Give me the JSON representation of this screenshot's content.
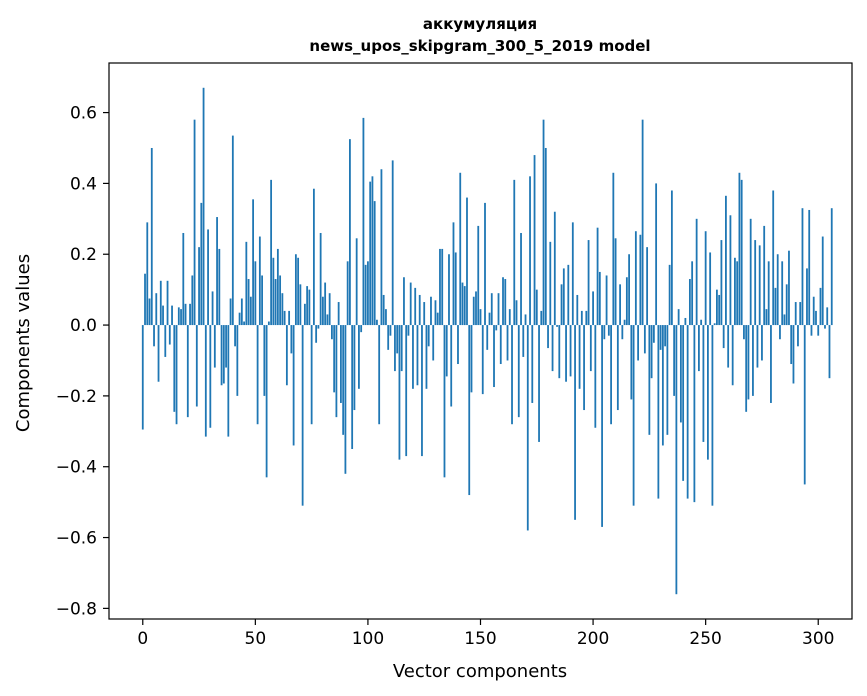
{
  "chart_data": {
    "type": "bar",
    "title_line1": "аккумуляция",
    "title_line2": "news_upos_skipgram_300_5_2019 model",
    "xlabel": "Vector components",
    "ylabel": "Components values",
    "xlim": [
      -15,
      315
    ],
    "ylim": [
      -0.83,
      0.74
    ],
    "xticks": [
      0,
      50,
      100,
      150,
      200,
      250,
      300
    ],
    "yticks": [
      -0.8,
      -0.6,
      -0.4,
      -0.2,
      0.0,
      0.2,
      0.4,
      0.6
    ],
    "ytick_labels": [
      "−0.8",
      "−0.6",
      "−0.4",
      "−0.2",
      "0.0",
      "0.2",
      "0.4",
      "0.6"
    ],
    "bar_color": "#1f77b4",
    "values": [
      -0.295,
      0.145,
      0.29,
      0.075,
      0.5,
      -0.06,
      0.09,
      -0.16,
      0.125,
      0.055,
      -0.09,
      0.125,
      -0.055,
      0.055,
      -0.245,
      -0.28,
      0.05,
      0.045,
      0.26,
      0.06,
      -0.26,
      0.06,
      0.14,
      0.58,
      -0.23,
      0.22,
      0.345,
      0.67,
      -0.315,
      0.27,
      -0.29,
      0.095,
      -0.12,
      0.305,
      0.215,
      -0.17,
      -0.165,
      -0.12,
      -0.315,
      0.075,
      0.535,
      -0.06,
      -0.2,
      0.035,
      0.075,
      0.01,
      0.235,
      0.13,
      0.08,
      0.355,
      0.18,
      -0.28,
      0.25,
      0.14,
      -0.2,
      -0.43,
      0.01,
      0.41,
      0.19,
      0.13,
      0.215,
      0.14,
      0.09,
      0.04,
      -0.17,
      0.04,
      -0.08,
      -0.34,
      0.2,
      0.19,
      0.115,
      -0.51,
      0.06,
      0.11,
      0.1,
      -0.28,
      0.385,
      -0.05,
      -0.01,
      0.26,
      0.08,
      0.12,
      0.03,
      0.09,
      -0.04,
      -0.19,
      -0.26,
      0.065,
      -0.22,
      -0.31,
      -0.42,
      0.18,
      0.525,
      -0.35,
      -0.24,
      0.245,
      -0.18,
      -0.02,
      0.585,
      0.17,
      0.18,
      0.405,
      0.42,
      0.35,
      0.015,
      -0.28,
      0.44,
      0.085,
      0.045,
      -0.07,
      -0.03,
      0.465,
      -0.13,
      -0.08,
      -0.38,
      -0.13,
      0.135,
      -0.37,
      -0.03,
      0.12,
      -0.18,
      0.105,
      -0.17,
      0.085,
      -0.37,
      0.065,
      -0.18,
      -0.06,
      0.08,
      -0.1,
      0.07,
      0.035,
      0.215,
      0.215,
      -0.43,
      -0.145,
      0.2,
      -0.23,
      0.29,
      0.205,
      -0.11,
      0.43,
      0.12,
      0.11,
      0.36,
      -0.48,
      -0.19,
      0.08,
      0.095,
      0.28,
      0.045,
      -0.195,
      0.345,
      -0.07,
      0.035,
      0.09,
      -0.175,
      -0.015,
      0.09,
      -0.11,
      0.135,
      0.13,
      -0.1,
      0.045,
      -0.28,
      0.41,
      0.07,
      -0.26,
      0.26,
      -0.09,
      0.03,
      -0.58,
      0.42,
      -0.22,
      0.48,
      0.1,
      -0.33,
      0.04,
      0.58,
      0.5,
      -0.065,
      0.235,
      -0.13,
      0.32,
      -0.005,
      -0.15,
      0.115,
      0.16,
      -0.16,
      0.17,
      -0.145,
      0.29,
      -0.55,
      0.085,
      -0.18,
      0.04,
      -0.24,
      0.04,
      0.24,
      -0.13,
      0.095,
      -0.29,
      0.275,
      0.15,
      -0.57,
      -0.04,
      0.14,
      -0.03,
      -0.28,
      0.43,
      0.245,
      -0.24,
      0.115,
      -0.04,
      0.015,
      0.135,
      0.2,
      -0.21,
      -0.51,
      0.265,
      -0.1,
      0.255,
      0.58,
      -0.08,
      0.22,
      -0.31,
      -0.15,
      -0.05,
      0.4,
      -0.49,
      -0.07,
      -0.34,
      -0.06,
      -0.31,
      0.17,
      0.38,
      -0.2,
      -0.76,
      0.045,
      -0.275,
      -0.44,
      0.02,
      -0.49,
      0.13,
      0.18,
      -0.5,
      0.3,
      -0.13,
      0.015,
      -0.33,
      0.265,
      -0.38,
      0.205,
      -0.51,
      0.005,
      0.1,
      0.085,
      0.24,
      -0.065,
      0.365,
      -0.12,
      0.31,
      -0.17,
      0.19,
      0.18,
      0.43,
      0.41,
      -0.04,
      -0.245,
      -0.21,
      0.3,
      -0.2,
      0.24,
      -0.12,
      0.225,
      -0.1,
      0.28,
      0.045,
      0.18,
      -0.22,
      0.38,
      0.105,
      0.2,
      -0.04,
      0.18,
      0.03,
      0.115,
      0.21,
      -0.11,
      -0.165,
      0.065,
      -0.06,
      0.065,
      0.33,
      -0.45,
      0.16,
      0.325,
      -0.03,
      0.08,
      0.04,
      -0.03,
      0.105,
      0.25,
      -0.01,
      0.05,
      -0.15,
      0.33
    ]
  }
}
